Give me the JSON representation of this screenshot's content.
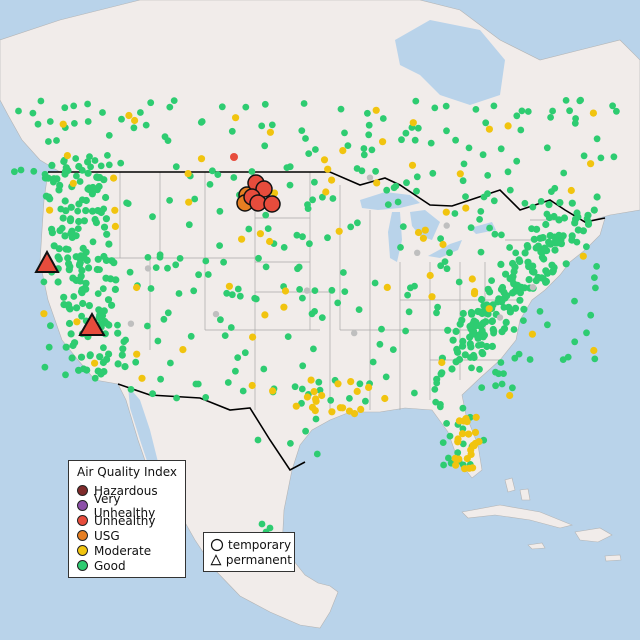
{
  "colors": {
    "ocean": "#b9d3ea",
    "land": "#f1ecea",
    "land_stroke": "#b4b4b4",
    "border": "#000000",
    "hazardous": "#7e2a2a",
    "very_unhealthy": "#8c4fa8",
    "unhealthy": "#e74c3c",
    "usg": "#e67e22",
    "moderate": "#f1c40f",
    "good": "#2ecc71",
    "nodata": "#bfbfbf"
  },
  "legend": {
    "title": "Air Quality Index",
    "items": [
      {
        "label": "Hazardous",
        "color": "#7e2a2a"
      },
      {
        "label": "Very Unhealthy",
        "color": "#8c4fa8"
      },
      {
        "label": "Unhealthy",
        "color": "#e74c3c"
      },
      {
        "label": "USG",
        "color": "#e67e22"
      },
      {
        "label": "Moderate",
        "color": "#f1c40f"
      },
      {
        "label": "Good",
        "color": "#2ecc71"
      }
    ]
  },
  "shape_legend": {
    "items": [
      {
        "label": "temporary",
        "icon": "circle-icon"
      },
      {
        "label": "permanent",
        "icon": "triangle-icon"
      }
    ]
  }
}
